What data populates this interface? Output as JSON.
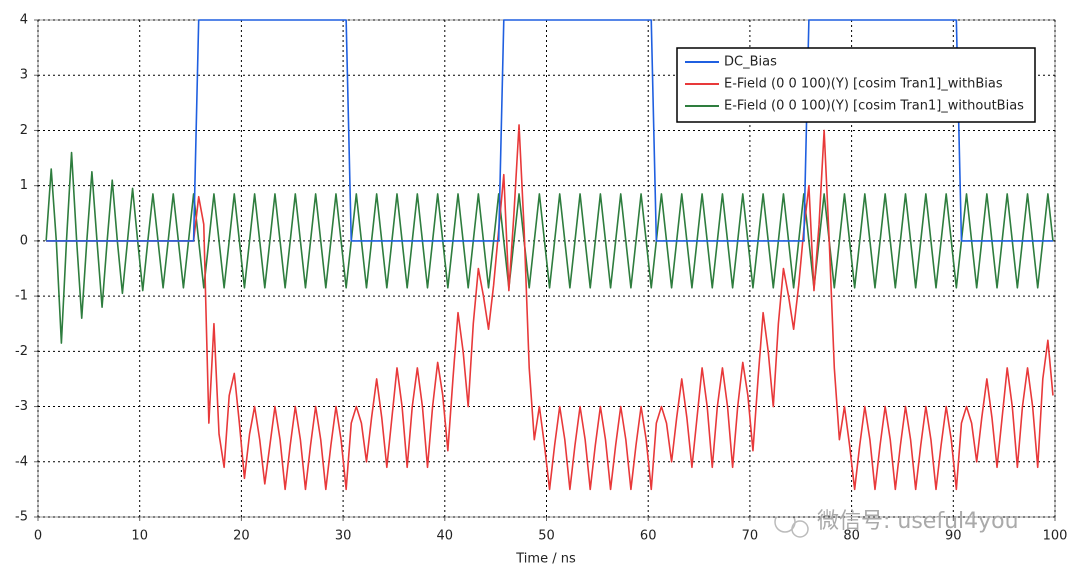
{
  "chart_data": {
    "type": "line",
    "x_label": "Time / ns",
    "watermark": "微信号: useful4you",
    "legend": "upper right",
    "grid": true,
    "xlim": [
      0,
      100
    ],
    "xticks": [
      0,
      10,
      20,
      30,
      40,
      50,
      60,
      70,
      80,
      90,
      100
    ],
    "ylim": [
      -5,
      4
    ],
    "yticks": [
      -5,
      -4,
      -3,
      -2,
      -1,
      0,
      1,
      2,
      3,
      4
    ],
    "x": [
      0.8,
      1.3,
      1.8,
      2.3,
      2.8,
      3.3,
      3.8,
      4.3,
      4.8,
      5.3,
      5.8,
      6.3,
      6.8,
      7.3,
      7.8,
      8.3,
      8.8,
      9.3,
      9.8,
      10.3,
      10.8,
      11.3,
      11.8,
      12.3,
      12.8,
      13.3,
      13.8,
      14.3,
      14.8,
      15.3,
      15.8,
      16.3,
      16.8,
      17.3,
      17.8,
      18.3,
      18.8,
      19.3,
      19.8,
      20.3,
      20.8,
      21.3,
      21.8,
      22.3,
      22.8,
      23.3,
      23.8,
      24.3,
      24.8,
      25.3,
      25.8,
      26.3,
      26.8,
      27.3,
      27.8,
      28.3,
      28.8,
      29.3,
      29.8,
      30.3,
      30.8,
      31.3,
      31.8,
      32.3,
      32.8,
      33.3,
      33.8,
      34.3,
      34.8,
      35.3,
      35.8,
      36.3,
      36.8,
      37.3,
      37.8,
      38.3,
      38.8,
      39.3,
      39.8,
      40.3,
      40.8,
      41.3,
      41.8,
      42.3,
      42.8,
      43.3,
      43.8,
      44.3,
      44.8,
      45.3,
      45.8,
      46.3,
      46.8,
      47.3,
      47.8,
      48.3,
      48.8,
      49.3,
      49.8,
      50.3,
      50.8,
      51.3,
      51.8,
      52.3,
      52.8,
      53.3,
      53.8,
      54.3,
      54.8,
      55.3,
      55.8,
      56.3,
      56.8,
      57.3,
      57.8,
      58.3,
      58.8,
      59.3,
      59.8,
      60.3,
      60.8,
      61.3,
      61.8,
      62.3,
      62.8,
      63.3,
      63.8,
      64.3,
      64.8,
      65.3,
      65.8,
      66.3,
      66.8,
      67.3,
      67.8,
      68.3,
      68.8,
      69.3,
      69.8,
      70.3,
      70.8,
      71.3,
      71.8,
      72.3,
      72.8,
      73.3,
      73.8,
      74.3,
      74.8,
      75.3,
      75.8,
      76.3,
      76.8,
      77.3,
      77.8,
      78.3,
      78.8,
      79.3,
      79.8,
      80.3,
      80.8,
      81.3,
      81.8,
      82.3,
      82.8,
      83.3,
      83.8,
      84.3,
      84.8,
      85.3,
      85.8,
      86.3,
      86.8,
      87.3,
      87.8,
      88.3,
      88.8,
      89.3,
      89.8,
      90.3,
      90.8,
      91.3,
      91.8,
      92.3,
      92.8,
      93.3,
      93.8,
      94.3,
      94.8,
      95.3,
      95.8,
      96.3,
      96.8,
      97.3,
      97.8,
      98.3,
      98.8,
      99.3,
      99.8
    ],
    "series": [
      {
        "name": "E-Field (0 0 100)(Y) [cosim Tran1]_withoutBias",
        "color": "#2e7d3e",
        "values": [
          0,
          1.3,
          0,
          -1.85,
          0,
          1.6,
          0,
          -1.4,
          0,
          1.25,
          0,
          -1.2,
          0,
          1.1,
          0,
          -0.95,
          0,
          0.95,
          0,
          -0.9,
          0,
          0.85,
          0,
          -0.85,
          0,
          0.85,
          0,
          -0.85,
          0,
          0.85,
          0,
          -0.85,
          0,
          0.85,
          0,
          -0.85,
          0,
          0.85,
          0,
          -0.85,
          0,
          0.85,
          0,
          -0.85,
          0,
          0.85,
          0,
          -0.85,
          0,
          0.85,
          0,
          -0.85,
          0,
          0.85,
          0,
          -0.85,
          0,
          0.85,
          0,
          -0.85,
          0,
          0.85,
          0,
          -0.85,
          0,
          0.85,
          0,
          -0.85,
          0,
          0.85,
          0,
          -0.85,
          0,
          0.85,
          0,
          -0.85,
          0,
          0.85,
          0,
          -0.85,
          0,
          0.85,
          0,
          -0.85,
          0,
          0.85,
          0,
          -0.85,
          0,
          0.85,
          0,
          -0.85,
          0,
          0.85,
          0,
          -0.85,
          0,
          0.85,
          0,
          -0.85,
          0,
          0.85,
          0,
          -0.85,
          0,
          0.85,
          0,
          -0.85,
          0,
          0.85,
          0,
          -0.85,
          0,
          0.85,
          0,
          -0.85,
          0,
          0.85,
          0,
          -0.85,
          0,
          0.85,
          0,
          -0.85,
          0,
          0.85,
          0,
          -0.85,
          0,
          0.85,
          0,
          -0.85,
          0,
          0.85,
          0,
          -0.85,
          0,
          0.85,
          0,
          -0.85,
          0,
          0.85,
          0,
          -0.85,
          0,
          0.85,
          0,
          -0.85,
          0,
          0.85,
          0,
          -0.85,
          0,
          0.85,
          0,
          -0.85,
          0,
          0.85,
          0,
          -0.85,
          0,
          0.85,
          0,
          -0.85,
          0,
          0.85,
          0,
          -0.85,
          0,
          0.85,
          0,
          -0.85,
          0,
          0.85,
          0,
          -0.85,
          0,
          0.85,
          0,
          -0.85,
          0,
          0.85,
          0,
          -0.85,
          0,
          0.85,
          0,
          -0.85,
          0,
          0.85,
          0,
          -0.85,
          0,
          0.85,
          0,
          -0.85,
          0,
          0.85,
          0
        ]
      },
      {
        "name": "E-Field (0 0 100)(Y) [cosim Tran1]_withBias",
        "color": "#e8393a",
        "values": [
          0,
          0,
          0,
          0,
          0,
          0,
          0,
          0,
          0,
          0,
          0,
          0,
          0,
          0,
          0,
          0,
          0,
          0,
          0,
          0,
          0,
          0,
          0,
          0,
          0,
          0,
          0,
          0,
          0,
          0,
          0.8,
          0.3,
          -3.3,
          -1.5,
          -3.5,
          -4.1,
          -2.8,
          -2.4,
          -3.3,
          -4.3,
          -3.5,
          -3.0,
          -3.6,
          -4.4,
          -3.7,
          -3.0,
          -3.6,
          -4.5,
          -3.7,
          -3.0,
          -3.6,
          -4.5,
          -3.7,
          -3.0,
          -3.6,
          -4.5,
          -3.7,
          -3.0,
          -3.6,
          -4.5,
          -3.3,
          -3.0,
          -3.3,
          -4.0,
          -3.2,
          -2.5,
          -3.2,
          -4.1,
          -3.2,
          -2.3,
          -3.0,
          -4.1,
          -3.0,
          -2.3,
          -3.0,
          -4.1,
          -3.0,
          -2.2,
          -2.8,
          -3.8,
          -2.5,
          -1.3,
          -2.0,
          -3.0,
          -1.5,
          -0.5,
          -1.0,
          -1.6,
          -0.8,
          0.2,
          1.2,
          -0.9,
          0.5,
          2.1,
          0.2,
          -2.3,
          -3.6,
          -3.0,
          -3.7,
          -4.5,
          -3.7,
          -3.0,
          -3.6,
          -4.5,
          -3.7,
          -3.0,
          -3.6,
          -4.5,
          -3.7,
          -3.0,
          -3.6,
          -4.5,
          -3.7,
          -3.0,
          -3.6,
          -4.5,
          -3.7,
          -3.0,
          -3.6,
          -4.5,
          -3.3,
          -3.0,
          -3.3,
          -4.0,
          -3.2,
          -2.5,
          -3.2,
          -4.1,
          -3.2,
          -2.3,
          -3.0,
          -4.1,
          -3.0,
          -2.3,
          -3.0,
          -4.1,
          -3.0,
          -2.2,
          -2.8,
          -3.8,
          -2.5,
          -1.3,
          -2.0,
          -3.0,
          -1.5,
          -0.5,
          -1.0,
          -1.6,
          -0.8,
          0.2,
          1.0,
          -0.9,
          0.3,
          2.0,
          0.0,
          -2.3,
          -3.6,
          -3.0,
          -3.7,
          -4.5,
          -3.7,
          -3.0,
          -3.6,
          -4.5,
          -3.7,
          -3.0,
          -3.6,
          -4.5,
          -3.7,
          -3.0,
          -3.6,
          -4.5,
          -3.7,
          -3.0,
          -3.6,
          -4.5,
          -3.7,
          -3.0,
          -3.6,
          -4.5,
          -3.3,
          -3.0,
          -3.3,
          -4.0,
          -3.2,
          -2.5,
          -3.2,
          -4.1,
          -3.2,
          -2.3,
          -3.0,
          -4.1,
          -3.0,
          -2.3,
          -3.0,
          -4.1,
          -2.5,
          -1.8,
          -2.8
        ]
      },
      {
        "name": "DC_Bias",
        "color": "#1f5fe0",
        "values": [
          0,
          0,
          0,
          0,
          0,
          0,
          0,
          0,
          0,
          0,
          0,
          0,
          0,
          0,
          0,
          0,
          0,
          0,
          0,
          0,
          0,
          0,
          0,
          0,
          0,
          0,
          0,
          0,
          0,
          0,
          4,
          4,
          4,
          4,
          4,
          4,
          4,
          4,
          4,
          4,
          4,
          4,
          4,
          4,
          4,
          4,
          4,
          4,
          4,
          4,
          4,
          4,
          4,
          4,
          4,
          4,
          4,
          4,
          4,
          4,
          0,
          0,
          0,
          0,
          0,
          0,
          0,
          0,
          0,
          0,
          0,
          0,
          0,
          0,
          0,
          0,
          0,
          0,
          0,
          0,
          0,
          0,
          0,
          0,
          0,
          0,
          0,
          0,
          0,
          0,
          4,
          4,
          4,
          4,
          4,
          4,
          4,
          4,
          4,
          4,
          4,
          4,
          4,
          4,
          4,
          4,
          4,
          4,
          4,
          4,
          4,
          4,
          4,
          4,
          4,
          4,
          4,
          4,
          4,
          4,
          0,
          0,
          0,
          0,
          0,
          0,
          0,
          0,
          0,
          0,
          0,
          0,
          0,
          0,
          0,
          0,
          0,
          0,
          0,
          0,
          0,
          0,
          0,
          0,
          0,
          0,
          0,
          0,
          0,
          0,
          4,
          4,
          4,
          4,
          4,
          4,
          4,
          4,
          4,
          4,
          4,
          4,
          4,
          4,
          4,
          4,
          4,
          4,
          4,
          4,
          4,
          4,
          4,
          4,
          4,
          4,
          4,
          4,
          4,
          4,
          0,
          0,
          0,
          0,
          0,
          0,
          0,
          0,
          0,
          0,
          0,
          0,
          0,
          0,
          0,
          0,
          0,
          0,
          0
        ]
      }
    ],
    "legend_order": [
      2,
      1,
      0
    ]
  }
}
